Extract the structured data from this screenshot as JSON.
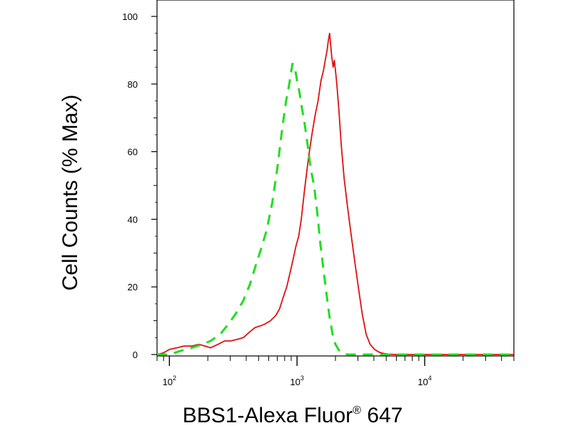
{
  "chart_data": {
    "type": "line",
    "title": "",
    "xlabel": "BBS1-Alexa Fluor",
    "xlabel_mark": "®",
    "xlabel_suffix": " 647",
    "ylabel": "Cell Counts (% Max)",
    "x_scale": "log",
    "xlim": [
      80,
      50000
    ],
    "ylim": [
      0,
      100
    ],
    "grid": false,
    "legend": "none",
    "y_ticks": [
      0,
      20,
      40,
      60,
      80,
      100
    ],
    "x_ticks": [
      {
        "value": 100,
        "base": "10",
        "exp": "2"
      },
      {
        "value": 1000,
        "base": "10",
        "exp": "3"
      },
      {
        "value": 10000,
        "base": "10",
        "exp": "4"
      }
    ],
    "series": [
      {
        "color": "#e01010",
        "style": "solid",
        "x": [
          80,
          90,
          100,
          115,
          130,
          150,
          170,
          190,
          210,
          240,
          270,
          300,
          340,
          380,
          420,
          470,
          520,
          560,
          620,
          680,
          730,
          780,
          830,
          880,
          930,
          980,
          1030,
          1080,
          1140,
          1200,
          1260,
          1320,
          1390,
          1460,
          1540,
          1610,
          1680,
          1720,
          1760,
          1800,
          1830,
          1870,
          1920,
          1960,
          2000,
          2050,
          2130,
          2220,
          2340,
          2480,
          2640,
          2820,
          3020,
          3240,
          3480,
          3740,
          4050,
          4400,
          4800,
          5300,
          5900,
          6600,
          7500,
          9000,
          12000,
          20000,
          50000
        ],
        "y": [
          0,
          0.5,
          1.5,
          2,
          2.5,
          2.5,
          3,
          2.5,
          2,
          3,
          4,
          4,
          4.5,
          5,
          6.5,
          8,
          8.5,
          9,
          10,
          11.5,
          13.5,
          17,
          20,
          24,
          28,
          32,
          35,
          40,
          48,
          55,
          61,
          66,
          71,
          75,
          81,
          84,
          88,
          90,
          93,
          95,
          92,
          88,
          85,
          87,
          84,
          80,
          72,
          62,
          52,
          44,
          36,
          28,
          20,
          12,
          6,
          3,
          1.5,
          0.7,
          0.3,
          0.1,
          0,
          0,
          0,
          0,
          0,
          0,
          0
        ]
      },
      {
        "color": "#22dd22",
        "style": "dashed",
        "x": [
          80,
          100,
          120,
          150,
          180,
          210,
          250,
          290,
          330,
          380,
          430,
          480,
          530,
          580,
          640,
          700,
          760,
          820,
          870,
          920,
          960,
          1000,
          1040,
          1090,
          1150,
          1210,
          1280,
          1360,
          1440,
          1520,
          1600,
          1700,
          1800,
          1900,
          2000,
          2150,
          2300,
          2500,
          2800,
          3200,
          50000
        ],
        "y": [
          0,
          0,
          1,
          2,
          3,
          4,
          6,
          9,
          12,
          16,
          21,
          27,
          32,
          37,
          45,
          55,
          66,
          75,
          80,
          86,
          85,
          81,
          78,
          73,
          68,
          62,
          55,
          50,
          42,
          33,
          26,
          18,
          11,
          6,
          3,
          1,
          0.3,
          0,
          0,
          0,
          0
        ]
      }
    ]
  }
}
